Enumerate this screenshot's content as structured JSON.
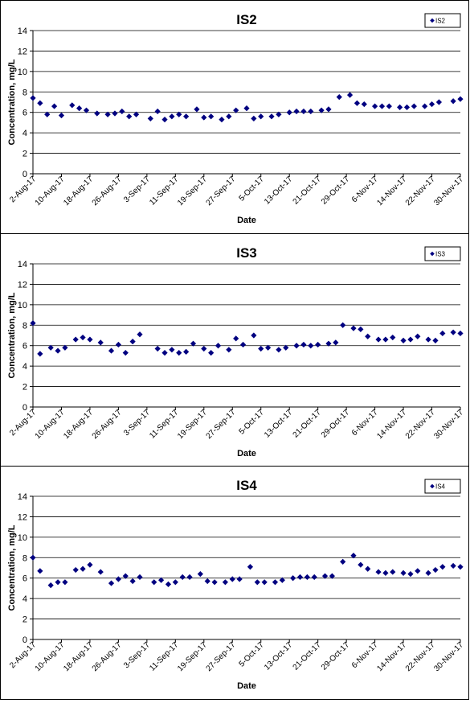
{
  "chart_data": [
    {
      "type": "scatter",
      "title": "IS2",
      "xlabel": "Date",
      "ylabel": "Concentration, mg/L",
      "ylim": [
        0,
        14
      ],
      "yticks": [
        0,
        2,
        4,
        6,
        8,
        10,
        12,
        14
      ],
      "xticks": [
        "2-Aug-17",
        "10-Aug-17",
        "18-Aug-17",
        "26-Aug-17",
        "3-Sep-17",
        "11-Sep-17",
        "19-Sep-17",
        "27-Sep-17",
        "5-Oct-17",
        "13-Oct-17",
        "21-Oct-17",
        "29-Oct-17",
        "6-Nov-17",
        "14-Nov-17",
        "22-Nov-17",
        "30-Nov-17"
      ],
      "grid": "horizontal",
      "legend": "top-right",
      "marker_color": "#000080",
      "series": [
        {
          "name": "IS2",
          "points": [
            [
              "2-Aug-17",
              7.4
            ],
            [
              "4-Aug-17",
              6.9
            ],
            [
              "6-Aug-17",
              5.8
            ],
            [
              "8-Aug-17",
              6.6
            ],
            [
              "10-Aug-17",
              5.7
            ],
            [
              "13-Aug-17",
              6.7
            ],
            [
              "15-Aug-17",
              6.4
            ],
            [
              "17-Aug-17",
              6.2
            ],
            [
              "20-Aug-17",
              5.9
            ],
            [
              "23-Aug-17",
              5.8
            ],
            [
              "25-Aug-17",
              5.9
            ],
            [
              "27-Aug-17",
              6.1
            ],
            [
              "29-Aug-17",
              5.6
            ],
            [
              "31-Aug-17",
              5.8
            ],
            [
              "4-Sep-17",
              5.4
            ],
            [
              "6-Sep-17",
              6.1
            ],
            [
              "8-Sep-17",
              5.3
            ],
            [
              "10-Sep-17",
              5.6
            ],
            [
              "12-Sep-17",
              5.8
            ],
            [
              "14-Sep-17",
              5.6
            ],
            [
              "17-Sep-17",
              6.3
            ],
            [
              "19-Sep-17",
              5.5
            ],
            [
              "21-Sep-17",
              5.6
            ],
            [
              "24-Sep-17",
              5.3
            ],
            [
              "26-Sep-17",
              5.6
            ],
            [
              "28-Sep-17",
              6.2
            ],
            [
              "1-Oct-17",
              6.4
            ],
            [
              "3-Oct-17",
              5.4
            ],
            [
              "5-Oct-17",
              5.6
            ],
            [
              "8-Oct-17",
              5.6
            ],
            [
              "10-Oct-17",
              5.8
            ],
            [
              "13-Oct-17",
              6.0
            ],
            [
              "15-Oct-17",
              6.1
            ],
            [
              "17-Oct-17",
              6.1
            ],
            [
              "19-Oct-17",
              6.1
            ],
            [
              "22-Oct-17",
              6.2
            ],
            [
              "24-Oct-17",
              6.3
            ],
            [
              "27-Oct-17",
              7.5
            ],
            [
              "30-Oct-17",
              7.7
            ],
            [
              "1-Nov-17",
              6.9
            ],
            [
              "3-Nov-17",
              6.8
            ],
            [
              "6-Nov-17",
              6.6
            ],
            [
              "8-Nov-17",
              6.6
            ],
            [
              "10-Nov-17",
              6.6
            ],
            [
              "13-Nov-17",
              6.5
            ],
            [
              "15-Nov-17",
              6.5
            ],
            [
              "17-Nov-17",
              6.6
            ],
            [
              "20-Nov-17",
              6.6
            ],
            [
              "22-Nov-17",
              6.8
            ],
            [
              "24-Nov-17",
              7.0
            ],
            [
              "28-Nov-17",
              7.1
            ],
            [
              "30-Nov-17",
              7.3
            ]
          ]
        }
      ]
    },
    {
      "type": "scatter",
      "title": "IS3",
      "xlabel": "Date",
      "ylabel": "Concentration, mg/L",
      "ylim": [
        0,
        14
      ],
      "yticks": [
        0,
        2,
        4,
        6,
        8,
        10,
        12,
        14
      ],
      "xticks": [
        "2-Aug-17",
        "10-Aug-17",
        "18-Aug-17",
        "26-Aug-17",
        "3-Sep-17",
        "11-Sep-17",
        "19-Sep-17",
        "27-Sep-17",
        "5-Oct-17",
        "13-Oct-17",
        "21-Oct-17",
        "29-Oct-17",
        "6-Nov-17",
        "14-Nov-17",
        "22-Nov-17",
        "30-Nov-17"
      ],
      "grid": "horizontal",
      "legend": "top-right",
      "marker_color": "#000080",
      "series": [
        {
          "name": "IS3",
          "points": [
            [
              "2-Aug-17",
              8.2
            ],
            [
              "4-Aug-17",
              5.2
            ],
            [
              "7-Aug-17",
              5.8
            ],
            [
              "9-Aug-17",
              5.5
            ],
            [
              "11-Aug-17",
              5.8
            ],
            [
              "14-Aug-17",
              6.6
            ],
            [
              "16-Aug-17",
              6.8
            ],
            [
              "18-Aug-17",
              6.6
            ],
            [
              "21-Aug-17",
              6.3
            ],
            [
              "24-Aug-17",
              5.5
            ],
            [
              "26-Aug-17",
              6.1
            ],
            [
              "28-Aug-17",
              5.3
            ],
            [
              "30-Aug-17",
              6.4
            ],
            [
              "1-Sep-17",
              7.1
            ],
            [
              "6-Sep-17",
              5.7
            ],
            [
              "8-Sep-17",
              5.3
            ],
            [
              "10-Sep-17",
              5.6
            ],
            [
              "12-Sep-17",
              5.3
            ],
            [
              "14-Sep-17",
              5.4
            ],
            [
              "16-Sep-17",
              6.2
            ],
            [
              "19-Sep-17",
              5.7
            ],
            [
              "21-Sep-17",
              5.3
            ],
            [
              "23-Sep-17",
              6.0
            ],
            [
              "26-Sep-17",
              5.6
            ],
            [
              "28-Sep-17",
              6.7
            ],
            [
              "30-Sep-17",
              6.1
            ],
            [
              "3-Oct-17",
              7.0
            ],
            [
              "5-Oct-17",
              5.7
            ],
            [
              "7-Oct-17",
              5.8
            ],
            [
              "10-Oct-17",
              5.6
            ],
            [
              "12-Oct-17",
              5.8
            ],
            [
              "15-Oct-17",
              6.0
            ],
            [
              "17-Oct-17",
              6.1
            ],
            [
              "19-Oct-17",
              6.0
            ],
            [
              "21-Oct-17",
              6.1
            ],
            [
              "24-Oct-17",
              6.2
            ],
            [
              "26-Oct-17",
              6.3
            ],
            [
              "28-Oct-17",
              8.0
            ],
            [
              "31-Oct-17",
              7.7
            ],
            [
              "2-Nov-17",
              7.6
            ],
            [
              "4-Nov-17",
              6.9
            ],
            [
              "7-Nov-17",
              6.6
            ],
            [
              "9-Nov-17",
              6.6
            ],
            [
              "11-Nov-17",
              6.8
            ],
            [
              "14-Nov-17",
              6.5
            ],
            [
              "16-Nov-17",
              6.6
            ],
            [
              "18-Nov-17",
              6.9
            ],
            [
              "21-Nov-17",
              6.6
            ],
            [
              "23-Nov-17",
              6.5
            ],
            [
              "25-Nov-17",
              7.2
            ],
            [
              "28-Nov-17",
              7.3
            ],
            [
              "30-Nov-17",
              7.2
            ]
          ]
        }
      ]
    },
    {
      "type": "scatter",
      "title": "IS4",
      "xlabel": "Date",
      "ylabel": "Concentration, mg/L",
      "ylim": [
        0,
        14
      ],
      "yticks": [
        0,
        2,
        4,
        6,
        8,
        10,
        12,
        14
      ],
      "xticks": [
        "2-Aug-17",
        "10-Aug-17",
        "18-Aug-17",
        "26-Aug-17",
        "3-Sep-17",
        "11-Sep-17",
        "19-Sep-17",
        "27-Sep-17",
        "5-Oct-17",
        "13-Oct-17",
        "21-Oct-17",
        "29-Oct-17",
        "6-Nov-17",
        "14-Nov-17",
        "22-Nov-17",
        "30-Nov-17"
      ],
      "grid": "horizontal",
      "legend": "top-right",
      "marker_color": "#000080",
      "series": [
        {
          "name": "IS4",
          "points": [
            [
              "2-Aug-17",
              8.0
            ],
            [
              "4-Aug-17",
              6.7
            ],
            [
              "7-Aug-17",
              5.3
            ],
            [
              "9-Aug-17",
              5.6
            ],
            [
              "11-Aug-17",
              5.6
            ],
            [
              "14-Aug-17",
              6.8
            ],
            [
              "16-Aug-17",
              6.9
            ],
            [
              "18-Aug-17",
              7.3
            ],
            [
              "21-Aug-17",
              6.6
            ],
            [
              "24-Aug-17",
              5.5
            ],
            [
              "26-Aug-17",
              5.9
            ],
            [
              "28-Aug-17",
              6.2
            ],
            [
              "30-Aug-17",
              5.7
            ],
            [
              "1-Sep-17",
              6.1
            ],
            [
              "5-Sep-17",
              5.6
            ],
            [
              "7-Sep-17",
              5.8
            ],
            [
              "9-Sep-17",
              5.4
            ],
            [
              "11-Sep-17",
              5.6
            ],
            [
              "13-Sep-17",
              6.1
            ],
            [
              "15-Sep-17",
              6.1
            ],
            [
              "18-Sep-17",
              6.4
            ],
            [
              "20-Sep-17",
              5.7
            ],
            [
              "22-Sep-17",
              5.6
            ],
            [
              "25-Sep-17",
              5.6
            ],
            [
              "27-Sep-17",
              5.9
            ],
            [
              "29-Sep-17",
              5.9
            ],
            [
              "2-Oct-17",
              7.1
            ],
            [
              "4-Oct-17",
              5.6
            ],
            [
              "6-Oct-17",
              5.6
            ],
            [
              "9-Oct-17",
              5.6
            ],
            [
              "11-Oct-17",
              5.8
            ],
            [
              "14-Oct-17",
              6.0
            ],
            [
              "16-Oct-17",
              6.1
            ],
            [
              "18-Oct-17",
              6.1
            ],
            [
              "20-Oct-17",
              6.1
            ],
            [
              "23-Oct-17",
              6.2
            ],
            [
              "25-Oct-17",
              6.2
            ],
            [
              "28-Oct-17",
              7.6
            ],
            [
              "31-Oct-17",
              8.2
            ],
            [
              "2-Nov-17",
              7.3
            ],
            [
              "4-Nov-17",
              6.9
            ],
            [
              "7-Nov-17",
              6.6
            ],
            [
              "9-Nov-17",
              6.5
            ],
            [
              "11-Nov-17",
              6.6
            ],
            [
              "14-Nov-17",
              6.5
            ],
            [
              "16-Nov-17",
              6.4
            ],
            [
              "18-Nov-17",
              6.7
            ],
            [
              "21-Nov-17",
              6.5
            ],
            [
              "23-Nov-17",
              6.8
            ],
            [
              "25-Nov-17",
              7.1
            ],
            [
              "28-Nov-17",
              7.2
            ],
            [
              "30-Nov-17",
              7.1
            ]
          ]
        }
      ]
    }
  ]
}
